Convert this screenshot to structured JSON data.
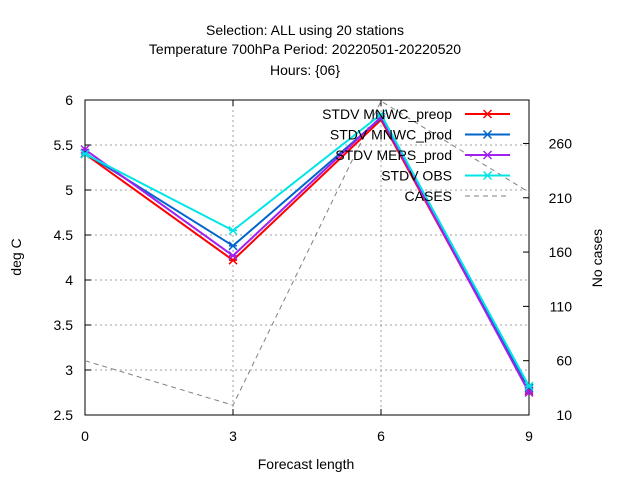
{
  "chart_data": {
    "type": "line",
    "title_lines": [
      "Selection: ALL using    20 stations",
      "Temperature 700hPa   Period: 20220501-20220520",
      "Hours: {06}"
    ],
    "xlabel": "Forecast length",
    "ylabel": "deg C",
    "y2label": "No cases",
    "x": [
      0,
      3,
      6,
      9
    ],
    "xlim": [
      0,
      9
    ],
    "xticks": [
      "0",
      "3",
      "6",
      "9"
    ],
    "ylim": [
      2.5,
      6
    ],
    "yticks": [
      "2.5",
      "3",
      "3.5",
      "4",
      "4.5",
      "5",
      "5.5",
      "6"
    ],
    "y2lim": [
      10,
      300
    ],
    "y2ticks": [
      "10",
      "60",
      "110",
      "160",
      "210",
      "260"
    ],
    "grid": true,
    "legend_position": "top-right",
    "series": [
      {
        "name": "STDV MNWC_preop",
        "color": "#ff0000",
        "marker": "x",
        "axis": "y",
        "values": [
          5.4,
          4.22,
          5.78,
          2.77
        ]
      },
      {
        "name": "STDV MNWC_prod",
        "color": "#0066cc",
        "marker": "x",
        "axis": "y",
        "values": [
          5.41,
          4.38,
          5.8,
          2.8
        ]
      },
      {
        "name": "STDV MEPS_prod",
        "color": "#a020f0",
        "marker": "x",
        "axis": "y",
        "values": [
          5.45,
          4.27,
          5.81,
          2.75
        ]
      },
      {
        "name": "STDV OBS",
        "color": "#00e5e5",
        "marker": "x",
        "axis": "y",
        "values": [
          5.4,
          4.55,
          5.84,
          2.82
        ]
      },
      {
        "name": "CASES",
        "color": "#808080",
        "marker": "none",
        "dashed": true,
        "axis": "y2",
        "values": [
          60,
          19,
          299,
          215
        ]
      }
    ]
  }
}
